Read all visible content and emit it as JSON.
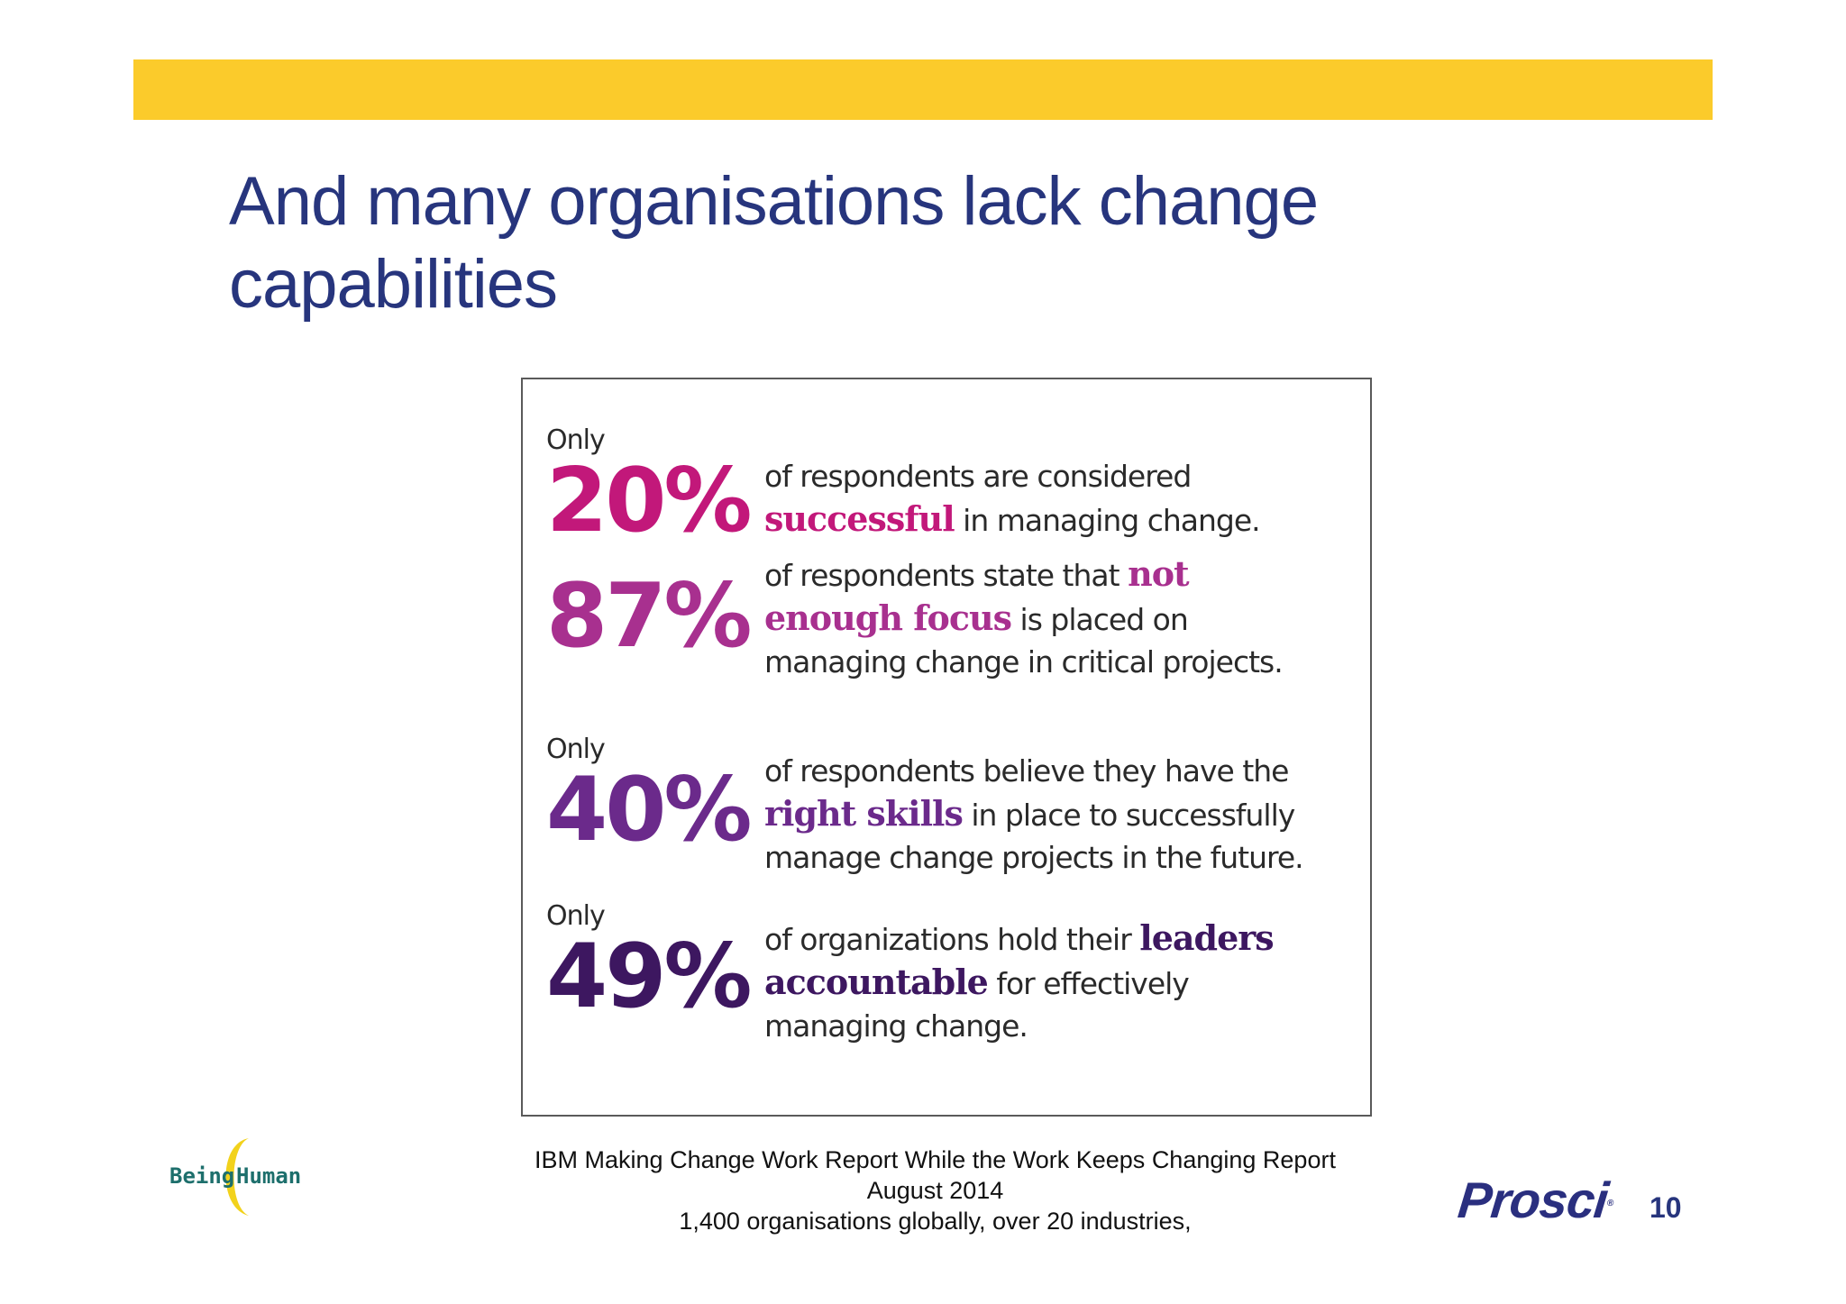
{
  "slide": {
    "title": "And many organisations lack change capabilities",
    "page_number": "10",
    "colors": {
      "banner": "#fbcb2b",
      "title": "#27357d",
      "stat_1": "#c2187a",
      "stat_2": "#a8308f",
      "stat_3": "#6b2a8b",
      "stat_4": "#3d1760"
    }
  },
  "stats": [
    {
      "only": "Only",
      "percent": "20%",
      "text_before": "of respondents are considered ",
      "highlight": "successful",
      "text_after": " in managing change."
    },
    {
      "only": "",
      "percent": "87%",
      "text_before": "of respondents state that ",
      "highlight": "not enough focus",
      "text_after": " is placed on managing change in critical projects."
    },
    {
      "only": "Only",
      "percent": "40%",
      "text_before": "of respondents believe they have the ",
      "highlight": "right skills",
      "text_after": " in place to successfully manage change projects in the future."
    },
    {
      "only": "Only",
      "percent": "49%",
      "text_before": "of organizations hold their ",
      "highlight": "leaders accountable",
      "text_after": " for effectively managing change."
    }
  ],
  "source": {
    "line1": "IBM Making Change Work Report While the Work Keeps Changing Report",
    "line2": "August 2014",
    "line3": "1,400 organisations globally, over 20 industries,"
  },
  "logos": {
    "being_human": {
      "word1": "Being",
      "word2": "Human"
    },
    "prosci": {
      "name": "Prosci",
      "mark": "®"
    }
  }
}
